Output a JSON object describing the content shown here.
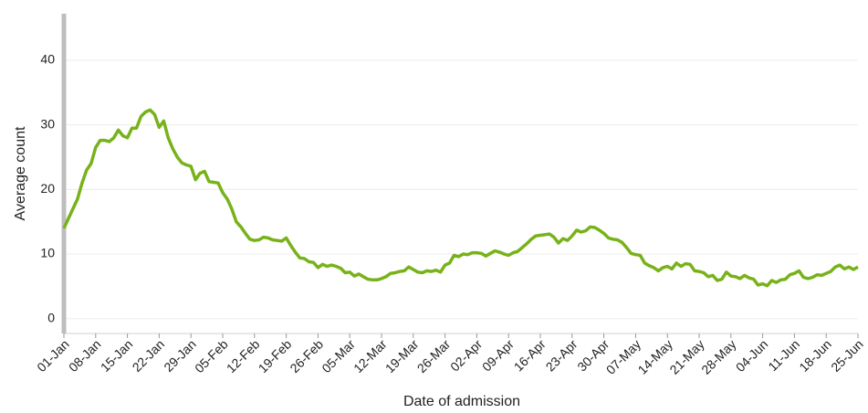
{
  "chart_data": {
    "type": "line",
    "x_label": "Date of admission",
    "y_label": "Average count",
    "categories": [
      "01-Jan",
      null,
      null,
      null,
      null,
      null,
      null,
      "08-Jan",
      null,
      null,
      null,
      null,
      null,
      null,
      "15-Jan",
      null,
      null,
      null,
      null,
      null,
      null,
      "22-Jan",
      null,
      null,
      null,
      null,
      null,
      null,
      "29-Jan",
      null,
      null,
      null,
      null,
      null,
      null,
      "05-Feb",
      null,
      null,
      null,
      null,
      null,
      null,
      "12-Feb",
      null,
      null,
      null,
      null,
      null,
      null,
      "19-Feb",
      null,
      null,
      null,
      null,
      null,
      null,
      "26-Feb",
      null,
      null,
      null,
      null,
      null,
      null,
      "05-Mar",
      null,
      null,
      null,
      null,
      null,
      null,
      "12-Mar",
      null,
      null,
      null,
      null,
      null,
      null,
      "19-Mar",
      null,
      null,
      null,
      null,
      null,
      null,
      "26-Mar",
      null,
      null,
      null,
      null,
      null,
      null,
      "02-Apr",
      null,
      null,
      null,
      null,
      null,
      null,
      "09-Apr",
      null,
      null,
      null,
      null,
      null,
      null,
      "16-Apr",
      null,
      null,
      null,
      null,
      null,
      null,
      "23-Apr",
      null,
      null,
      null,
      null,
      null,
      null,
      "30-Apr",
      null,
      null,
      null,
      null,
      null,
      null,
      "07-May",
      null,
      null,
      null,
      null,
      null,
      null,
      "14-May",
      null,
      null,
      null,
      null,
      null,
      null,
      "21-May",
      null,
      null,
      null,
      null,
      null,
      null,
      "28-May",
      null,
      null,
      null,
      null,
      null,
      null,
      "04-Jun",
      null,
      null,
      null,
      null,
      null,
      null,
      "11-Jun",
      null,
      null,
      null,
      null,
      null,
      null,
      "18-Jun",
      null,
      null,
      null,
      null,
      null,
      null,
      "25-Jun"
    ],
    "values": [
      14.0,
      15.5,
      17.0,
      18.5,
      21.0,
      23.0,
      24.0,
      26.5,
      27.6,
      27.6,
      27.4,
      28.0,
      29.2,
      28.3,
      28.0,
      29.5,
      29.5,
      31.3,
      32.0,
      32.3,
      31.6,
      29.6,
      30.6,
      28.0,
      26.3,
      25.0,
      24.1,
      23.8,
      23.6,
      21.5,
      22.5,
      22.8,
      21.2,
      21.1,
      21.0,
      19.5,
      18.5,
      17.0,
      15.0,
      14.2,
      13.2,
      12.3,
      12.1,
      12.2,
      12.6,
      12.5,
      12.2,
      12.1,
      12.0,
      12.5,
      11.3,
      10.3,
      9.4,
      9.3,
      8.8,
      8.7,
      7.9,
      8.4,
      8.1,
      8.3,
      8.1,
      7.8,
      7.1,
      7.2,
      6.6,
      6.9,
      6.5,
      6.1,
      6.0,
      6.0,
      6.2,
      6.5,
      7.0,
      7.1,
      7.3,
      7.4,
      8.0,
      7.6,
      7.2,
      7.1,
      7.4,
      7.3,
      7.5,
      7.2,
      8.3,
      8.6,
      9.8,
      9.6,
      10.0,
      9.9,
      10.2,
      10.2,
      10.1,
      9.7,
      10.1,
      10.5,
      10.3,
      10.0,
      9.8,
      10.2,
      10.4,
      11.0,
      11.6,
      12.3,
      12.8,
      12.9,
      13.0,
      13.1,
      12.6,
      11.7,
      12.4,
      12.1,
      12.8,
      13.7,
      13.4,
      13.6,
      14.2,
      14.1,
      13.7,
      13.2,
      12.5,
      12.3,
      12.2,
      11.8,
      11.0,
      10.1,
      9.9,
      9.8,
      8.6,
      8.2,
      7.9,
      7.4,
      7.9,
      8.1,
      7.7,
      8.6,
      8.1,
      8.5,
      8.4,
      7.4,
      7.3,
      7.1,
      6.5,
      6.7,
      5.9,
      6.1,
      7.2,
      6.6,
      6.5,
      6.2,
      6.7,
      6.3,
      6.1,
      5.2,
      5.4,
      5.1,
      5.9,
      5.6,
      6.0,
      6.1,
      6.8,
      7.0,
      7.4,
      6.4,
      6.2,
      6.4,
      6.8,
      6.7,
      7.0,
      7.3,
      8.0,
      8.3,
      7.7,
      8.0,
      7.6,
      8.0
    ],
    "color": "#78b21a",
    "ylim": [
      -2.3,
      47.2
    ],
    "yticks": [
      0,
      10,
      20,
      30,
      40
    ],
    "grid": true
  }
}
